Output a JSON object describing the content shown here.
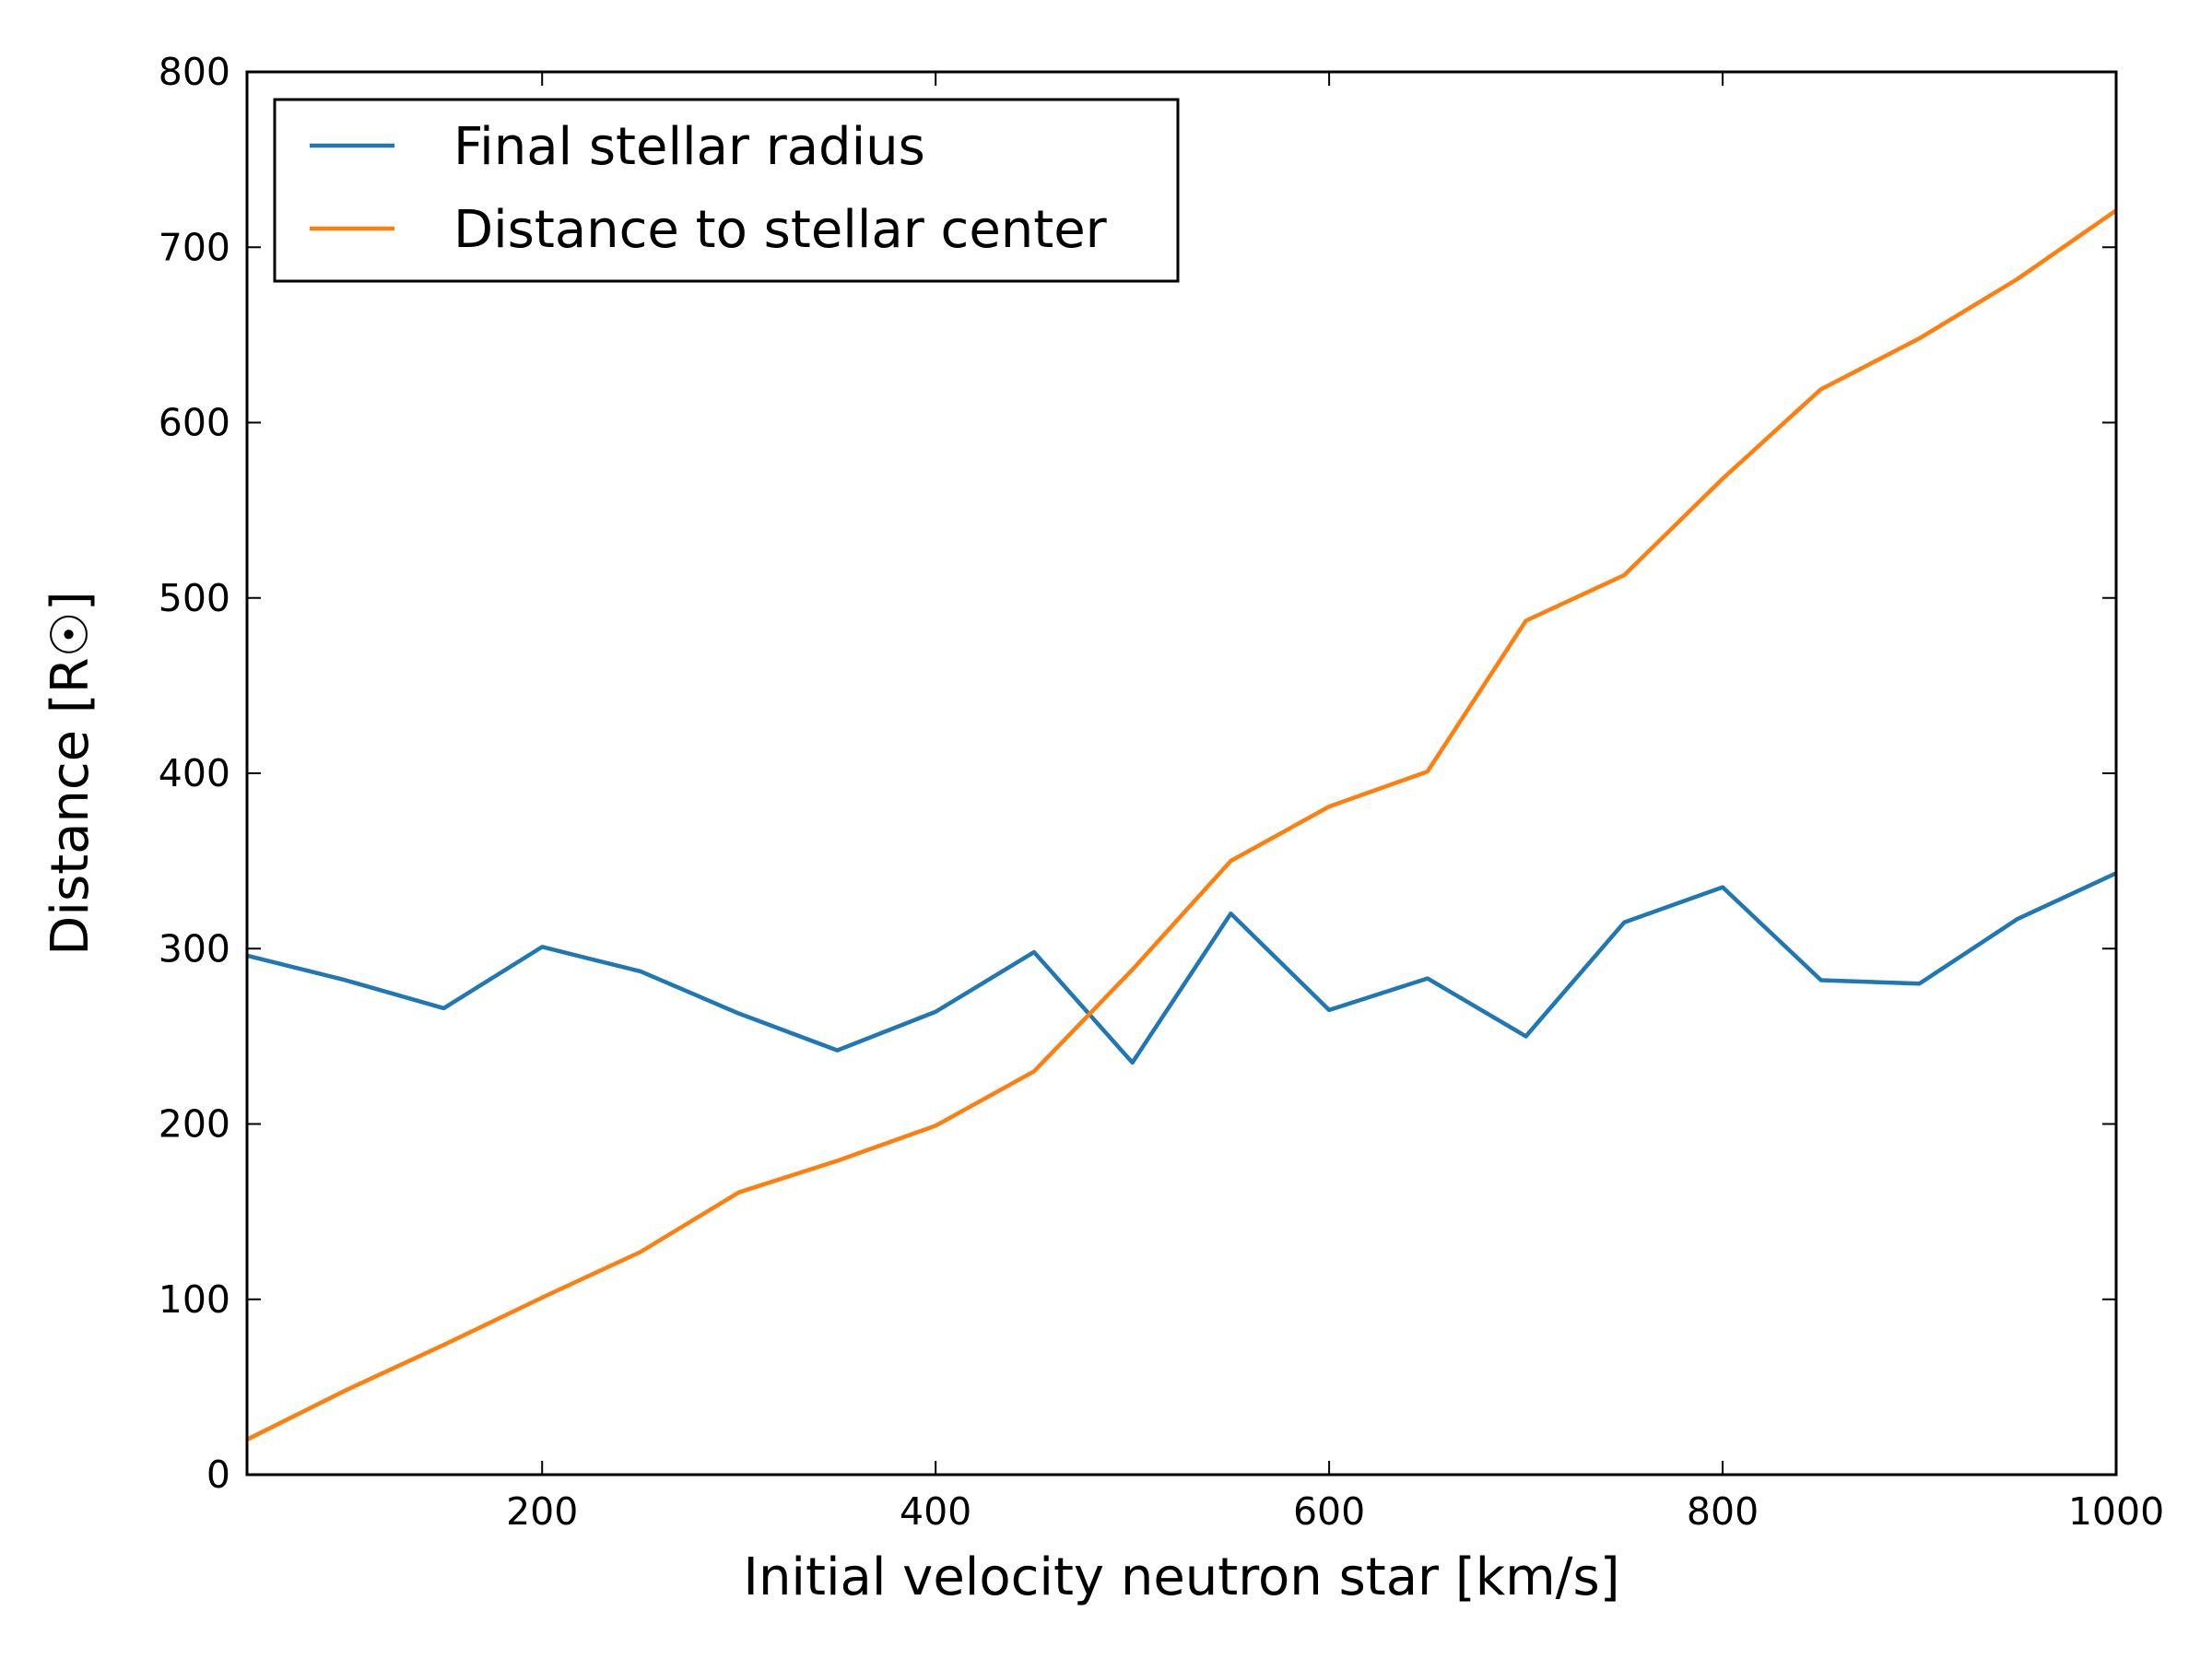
{
  "chart_data": {
    "type": "line",
    "xlabel": "Initial velocity neutron star [km/s]",
    "ylabel": "Distance [R☉]",
    "xlim": [
      50,
      1000
    ],
    "ylim": [
      0,
      800
    ],
    "x_ticks": [
      200,
      400,
      600,
      800,
      1000
    ],
    "y_ticks": [
      0,
      100,
      200,
      300,
      400,
      500,
      600,
      700,
      800
    ],
    "grid": false,
    "legend_position": "top-left",
    "x": [
      50,
      100,
      150,
      200,
      250,
      300,
      350,
      400,
      450,
      500,
      550,
      600,
      650,
      700,
      750,
      800,
      850,
      900,
      950,
      1000
    ],
    "series": [
      {
        "name": "Final stellar radius",
        "color": "#1f77b4",
        "values": [
          296,
          282,
          266,
          301,
          287,
          263,
          242,
          264,
          298,
          235,
          320,
          265,
          283,
          250,
          315,
          335,
          282,
          280,
          317,
          343
        ]
      },
      {
        "name": "Distance to stellar center",
        "color": "#ff7f0e",
        "values": [
          20,
          48,
          74,
          101,
          127,
          161,
          179,
          199,
          230,
          288,
          350,
          381,
          401,
          487,
          513,
          568,
          619,
          648,
          682,
          721
        ]
      }
    ]
  }
}
